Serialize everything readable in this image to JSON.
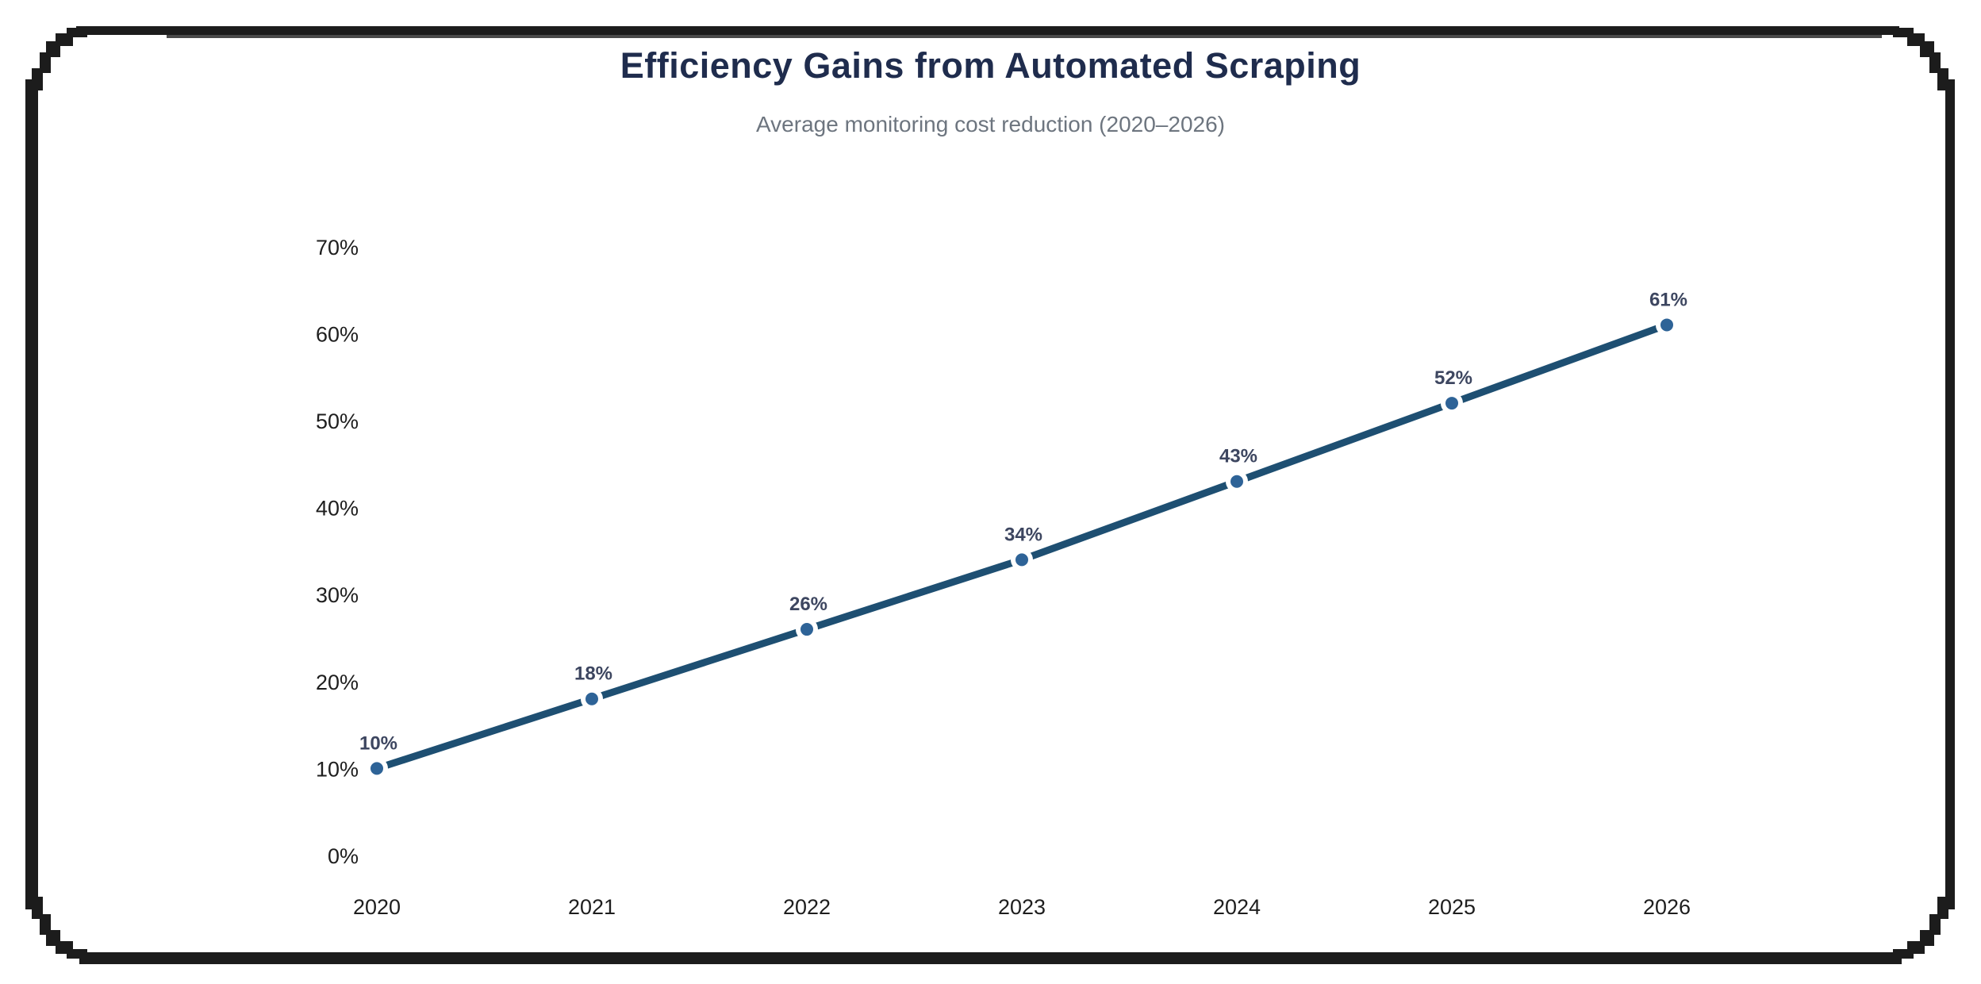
{
  "header": {
    "title": "Efficiency Gains from Automated Scraping",
    "subtitle": "Average monitoring cost reduction (2020–2026)"
  },
  "frame": {
    "border_color": "#1c1c1c",
    "accent_line_color": "#4a4a4a"
  },
  "chart_data": {
    "type": "line",
    "title": "Efficiency Gains from Automated Scraping",
    "subtitle": "Average monitoring cost reduction (2020–2026)",
    "x": [
      "2020",
      "2021",
      "2022",
      "2023",
      "2024",
      "2025",
      "2026"
    ],
    "series": [
      {
        "name": "Average monitoring cost reduction",
        "values": [
          10,
          18,
          26,
          34,
          43,
          52,
          61
        ]
      }
    ],
    "point_labels": [
      "10%",
      "18%",
      "26%",
      "34%",
      "43%",
      "52%",
      "61%"
    ],
    "y_ticks": [
      {
        "value": 70,
        "label": "70%"
      },
      {
        "value": 60,
        "label": "60%"
      },
      {
        "value": 50,
        "label": "50%"
      },
      {
        "value": 40,
        "label": "40%"
      },
      {
        "value": 30,
        "label": "30%"
      },
      {
        "value": 20,
        "label": "20%"
      },
      {
        "value": 10,
        "label": "10%"
      },
      {
        "value": 0,
        "label": "0%"
      }
    ],
    "ylim": [
      0,
      70
    ],
    "xlabel": "",
    "ylabel": "",
    "grid": false,
    "legend": false,
    "marker_style": "circle",
    "colors": {
      "line": "#1e4f72",
      "marker": "#2e6397",
      "point_label": "#3d4660",
      "axis_label": "#1e1e1e",
      "title": "#1f2c4d",
      "subtitle": "#6d757f"
    }
  }
}
